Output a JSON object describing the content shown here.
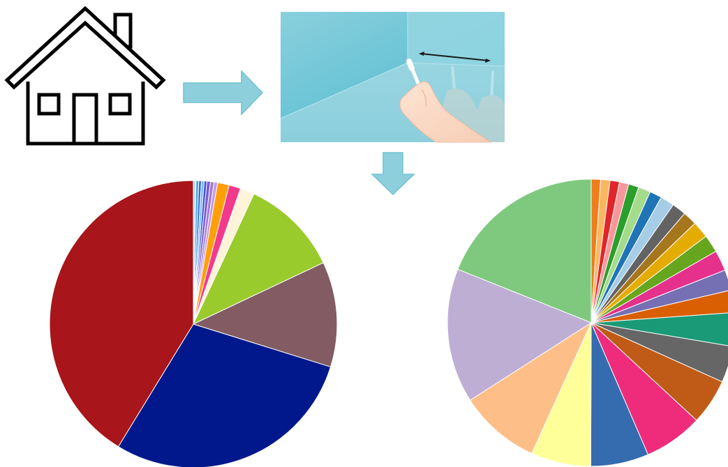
{
  "figure": {
    "icons": [
      "house-icon",
      "right-arrow-icon",
      "swab-sampling-illustration",
      "down-arrow-icon"
    ],
    "colors": {
      "arrow": "#8ecfdc",
      "arrow_stroke": "#6ec2d2",
      "panel_light": "#8fd3df",
      "panel_dark": "#5bc0d2",
      "house_stroke": "#000000",
      "swab_line": "#1a1a1a"
    }
  },
  "chart_data": [
    {
      "type": "pie",
      "title": "",
      "start_angle_deg": 0,
      "direction": "clockwise",
      "slices": [
        {
          "value": 0.3,
          "color": "#b3e0f2"
        },
        {
          "value": 0.3,
          "color": "#4fa3e0"
        },
        {
          "value": 0.3,
          "color": "#2f6fd6"
        },
        {
          "value": 0.3,
          "color": "#7ab8ff"
        },
        {
          "value": 0.3,
          "color": "#3b4fd8"
        },
        {
          "value": 0.4,
          "color": "#7b5ccf"
        },
        {
          "value": 0.4,
          "color": "#a27bd6"
        },
        {
          "value": 0.4,
          "color": "#c79be5"
        },
        {
          "value": 1.3,
          "color": "#ff9f0a"
        },
        {
          "value": 1.3,
          "color": "#f23a8d"
        },
        {
          "value": 1.6,
          "color": "#fff3d9"
        },
        {
          "value": 11.0,
          "color": "#99cb2d"
        },
        {
          "value": 11.8,
          "color": "#835b62"
        },
        {
          "value": 28.8,
          "color": "#00188c"
        },
        {
          "value": 41.1,
          "color": "#a8151a"
        }
      ]
    },
    {
      "type": "pie",
      "title": "",
      "start_angle_deg": 0,
      "direction": "clockwise",
      "slices": [
        {
          "value": 1.0,
          "color": "#f07d1c"
        },
        {
          "value": 1.0,
          "color": "#fbb760"
        },
        {
          "value": 1.0,
          "color": "#e0262b"
        },
        {
          "value": 1.0,
          "color": "#f8979a"
        },
        {
          "value": 1.1,
          "color": "#2c9e2c"
        },
        {
          "value": 1.3,
          "color": "#a5dc8c"
        },
        {
          "value": 1.3,
          "color": "#1f74b6"
        },
        {
          "value": 1.5,
          "color": "#a6cde6"
        },
        {
          "value": 1.5,
          "color": "#636363"
        },
        {
          "value": 1.5,
          "color": "#a6761d"
        },
        {
          "value": 1.8,
          "color": "#e5ac00"
        },
        {
          "value": 1.9,
          "color": "#66a61e"
        },
        {
          "value": 2.2,
          "color": "#e5308c"
        },
        {
          "value": 2.2,
          "color": "#7570b3"
        },
        {
          "value": 2.4,
          "color": "#d95f02"
        },
        {
          "value": 3.6,
          "color": "#1a9a77"
        },
        {
          "value": 3.9,
          "color": "#666666"
        },
        {
          "value": 4.9,
          "color": "#bf5b17"
        },
        {
          "value": 6.3,
          "color": "#ef2c7b"
        },
        {
          "value": 6.2,
          "color": "#356cb0"
        },
        {
          "value": 6.4,
          "color": "#ffff99"
        },
        {
          "value": 8.7,
          "color": "#fdbf87"
        },
        {
          "value": 14.4,
          "color": "#beaed4"
        },
        {
          "value": 18.0,
          "color": "#7fc97f"
        }
      ]
    }
  ]
}
